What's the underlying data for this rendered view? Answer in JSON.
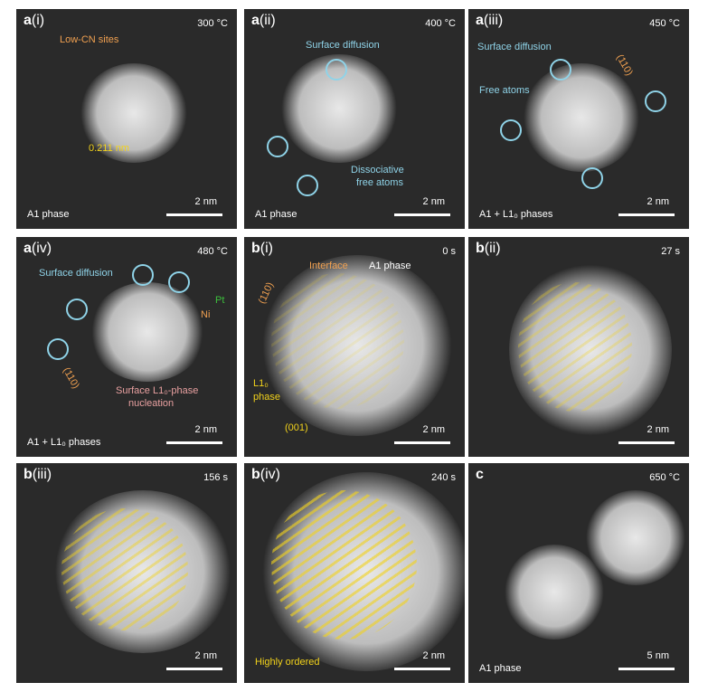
{
  "panels": [
    {
      "label": "a",
      "sub": "(i)",
      "corner": "300 °C",
      "phase": "A1 phase",
      "scale": "2 nm",
      "notes": [
        "Low-CN sites",
        "0.211 nm"
      ]
    },
    {
      "label": "a",
      "sub": "(ii)",
      "corner": "400 °C",
      "phase": "A1 phase",
      "scale": "2 nm",
      "notes": [
        "Surface diffusion",
        "Dissociative",
        "free atoms"
      ]
    },
    {
      "label": "a",
      "sub": "(iii)",
      "corner": "450 °C",
      "phase": "A1 + L1₀ phases",
      "scale": "2 nm",
      "notes": [
        "Surface diffusion",
        "Free atoms",
        "(110)"
      ]
    },
    {
      "label": "a",
      "sub": "(iv)",
      "corner": "480 °C",
      "phase": "A1 + L1₀ phases",
      "scale": "2 nm",
      "notes": [
        "Surface diffusion",
        "Pt",
        "Ni",
        "(110)",
        "Surface L1₀-phase",
        "nucleation"
      ]
    },
    {
      "label": "b",
      "sub": "(i)",
      "corner": "0 s",
      "scale": "2 nm",
      "notes": [
        "Interface",
        "A1 phase",
        "(110)",
        "L1₀",
        "phase",
        "(001)"
      ]
    },
    {
      "label": "b",
      "sub": "(ii)",
      "corner": "27 s",
      "scale": "2 nm"
    },
    {
      "label": "b",
      "sub": "(iii)",
      "corner": "156 s",
      "scale": "2 nm"
    },
    {
      "label": "b",
      "sub": "(iv)",
      "corner": "240 s",
      "scale": "2 nm",
      "notes": [
        "Highly ordered"
      ]
    },
    {
      "label": "c",
      "corner": "650 °C",
      "phase": "A1 phase",
      "scale": "5 nm"
    }
  ]
}
